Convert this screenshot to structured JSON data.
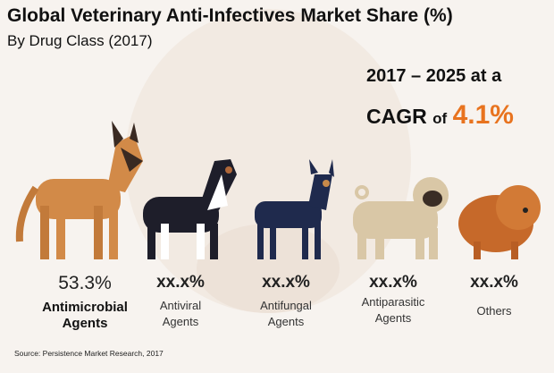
{
  "title": "Global Veterinary Anti-Infectives Market Share (%)",
  "subtitle": "By Drug Class (2017)",
  "cagr": {
    "line1": "2017 – 2025 at a",
    "prefix": "CAGR",
    "of": "of",
    "value": "4.1%"
  },
  "source": "Source: Persistence Market Research, 2017",
  "colors": {
    "accent": "#e8731f"
  },
  "chart_data": {
    "type": "table",
    "title": "Global Veterinary Anti-Infectives Market Share (%)",
    "subtitle": "By Drug Class (2017)",
    "categories": [
      "Antimicrobial Agents",
      "Antiviral Agents",
      "Antifungal Agents",
      "Antiparasitic Agents",
      "Others"
    ],
    "values": [
      53.3,
      null,
      null,
      null,
      null
    ],
    "value_labels": [
      "53.3%",
      "xx.x%",
      "xx.x%",
      "xx.x%",
      "xx.x%"
    ],
    "label_lines": [
      [
        "Antimicrobial",
        "Agents"
      ],
      [
        "Antiviral",
        "Agents"
      ],
      [
        "Antifungal",
        "Agents"
      ],
      [
        "Antiparasitic",
        "Agents"
      ],
      [
        "Others"
      ]
    ]
  }
}
